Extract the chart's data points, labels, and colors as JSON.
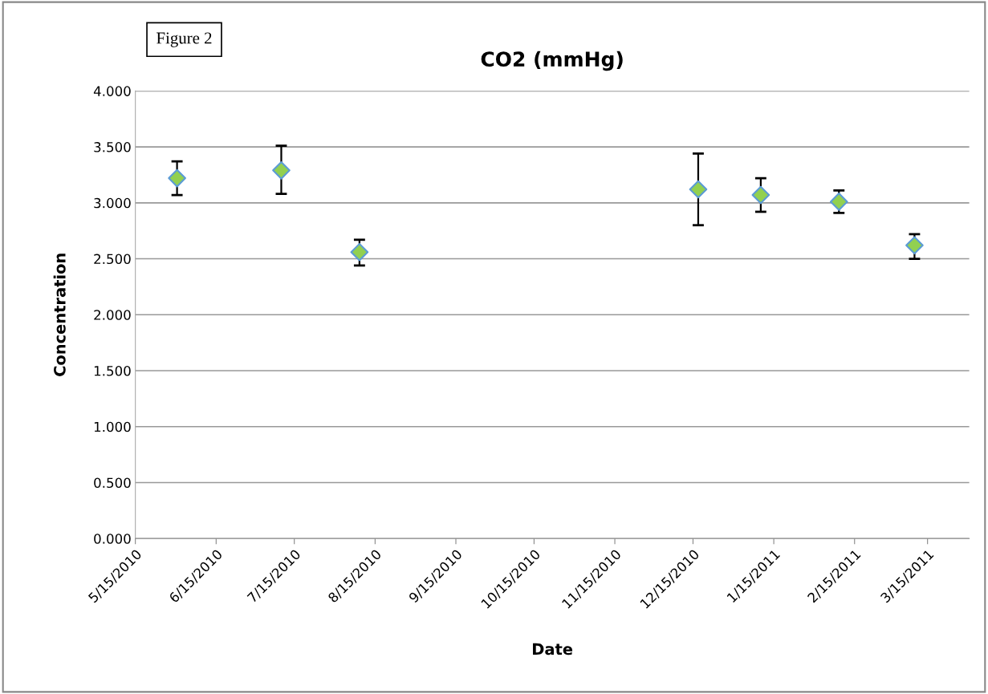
{
  "chart_data": {
    "type": "scatter",
    "title": "CO2 (mmHg)",
    "xlabel": "Date",
    "ylabel": "Concentration",
    "annotations": [
      "Figure 2"
    ],
    "x": [
      "2010-05-31",
      "2010-07-10",
      "2010-08-09",
      "2010-12-17",
      "2011-01-10",
      "2011-02-09",
      "2011-03-10"
    ],
    "series": [
      {
        "color": "#92d050",
        "values": [
          3.22,
          3.29,
          2.56,
          3.12,
          3.07,
          3.01,
          2.62
        ],
        "errors": [
          [
            3.07,
            3.37
          ],
          [
            3.08,
            3.51
          ],
          [
            2.44,
            2.67
          ],
          [
            2.8,
            3.44
          ],
          [
            2.92,
            3.22
          ],
          [
            2.91,
            3.11
          ],
          [
            2.5,
            2.72
          ]
        ]
      }
    ],
    "xlim": [
      "2010-05-15",
      "2011-03-31"
    ],
    "xticks": [
      {
        "value": "2010-05-15",
        "label": "5/15/2010"
      },
      {
        "value": "2010-06-15",
        "label": "6/15/2010"
      },
      {
        "value": "2010-07-15",
        "label": "7/15/2010"
      },
      {
        "value": "2010-08-15",
        "label": "8/15/2010"
      },
      {
        "value": "2010-09-15",
        "label": "9/15/2010"
      },
      {
        "value": "2010-10-15",
        "label": "10/15/2010"
      },
      {
        "value": "2010-11-15",
        "label": "11/15/2010"
      },
      {
        "value": "2010-12-15",
        "label": "12/15/2010"
      },
      {
        "value": "2011-01-15",
        "label": "1/15/2011"
      },
      {
        "value": "2011-02-15",
        "label": "2/15/2011"
      },
      {
        "value": "2011-03-15",
        "label": "3/15/2011"
      }
    ],
    "ylim": [
      0,
      4
    ],
    "yticks": [
      {
        "value": 0,
        "label": "0.000"
      },
      {
        "value": 0.5,
        "label": "0.500"
      },
      {
        "value": 1,
        "label": "1.000"
      },
      {
        "value": 1.5,
        "label": "1.500"
      },
      {
        "value": 2,
        "label": "2.000"
      },
      {
        "value": 2.5,
        "label": "2.500"
      },
      {
        "value": 3,
        "label": "3.000"
      },
      {
        "value": 3.5,
        "label": "3.500"
      },
      {
        "value": 4,
        "label": "4.000"
      }
    ],
    "grid": "y",
    "marker": "diamond",
    "legend": false
  }
}
